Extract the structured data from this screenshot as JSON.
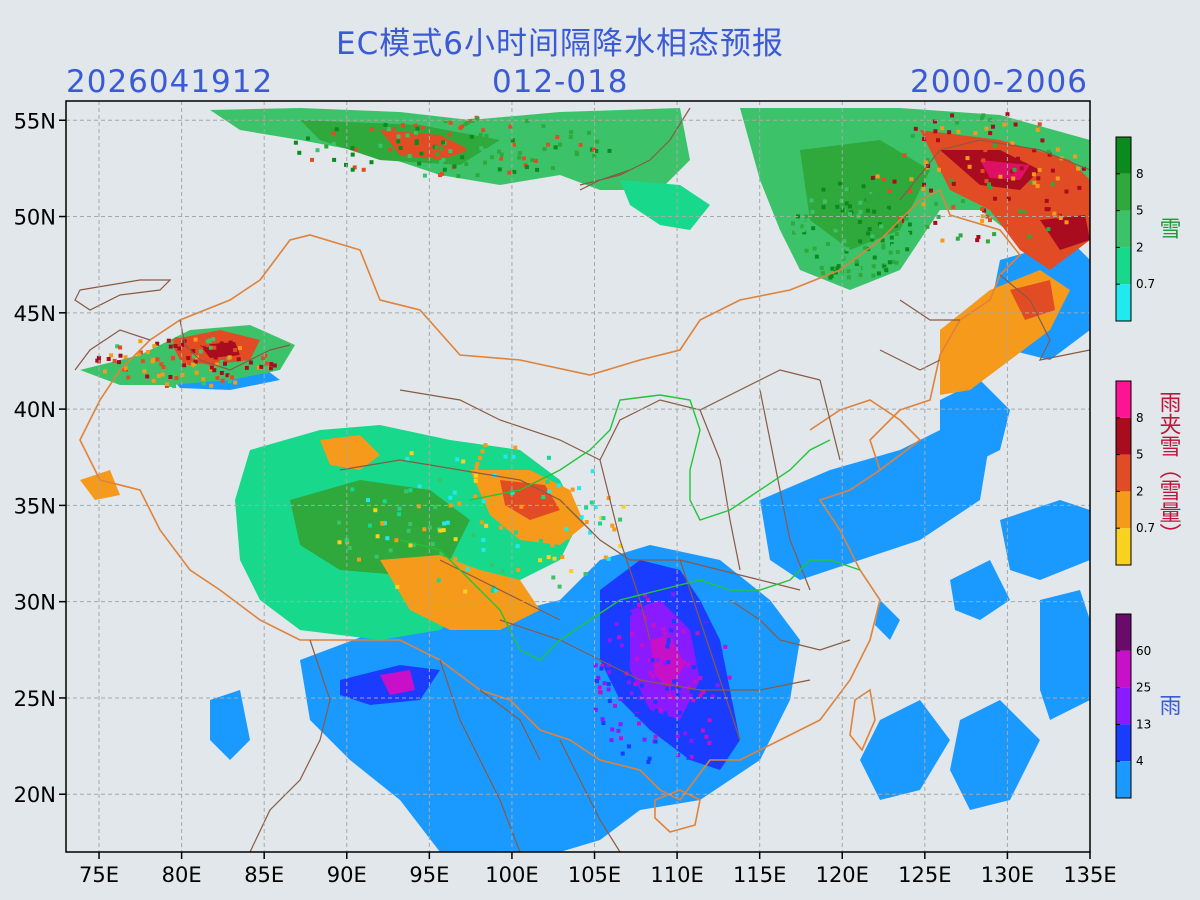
{
  "title": "EC模式6小时间隔降水相态预报",
  "subtitle": {
    "init_time": "2026041912",
    "forecast_hours": "012-018",
    "valid_time": "2000-2006"
  },
  "axes": {
    "lon_ticks": [
      "75E",
      "80E",
      "85E",
      "90E",
      "95E",
      "100E",
      "105E",
      "110E",
      "115E",
      "120E",
      "125E",
      "130E",
      "135E"
    ],
    "lon_values": [
      75,
      80,
      85,
      90,
      95,
      100,
      105,
      110,
      115,
      120,
      125,
      130,
      135
    ],
    "lat_ticks": [
      "55N",
      "50N",
      "45N",
      "40N",
      "35N",
      "30N",
      "25N",
      "20N"
    ],
    "lat_values": [
      55,
      50,
      45,
      40,
      35,
      30,
      25,
      20
    ],
    "lon_range": [
      73,
      135
    ],
    "lat_range": [
      17,
      56
    ],
    "grid": true
  },
  "colorbars": [
    {
      "name": "snow",
      "title": "雪",
      "title_color": "#1a9a3a",
      "labels": [
        "8",
        "5",
        "2",
        "0.7"
      ],
      "colors": [
        "#0b8a1e",
        "#2fa83c",
        "#3cc36a",
        "#18d88c",
        "#22e8f0"
      ]
    },
    {
      "name": "sleet",
      "title": "雨夹雪（雪量）",
      "title_color": "#c0143c",
      "labels": [
        "8",
        "5",
        "2",
        "0.7"
      ],
      "colors": [
        "#ff1493",
        "#a80c1e",
        "#e24c24",
        "#f59a1a",
        "#f8d21e"
      ]
    },
    {
      "name": "rain",
      "title": "雨",
      "title_color": "#3b5bd6",
      "labels": [
        "60",
        "25",
        "13",
        "4"
      ],
      "colors": [
        "#6a0a6a",
        "#c810c8",
        "#8a1aff",
        "#1a3cff",
        "#1a9aff"
      ]
    }
  ]
}
